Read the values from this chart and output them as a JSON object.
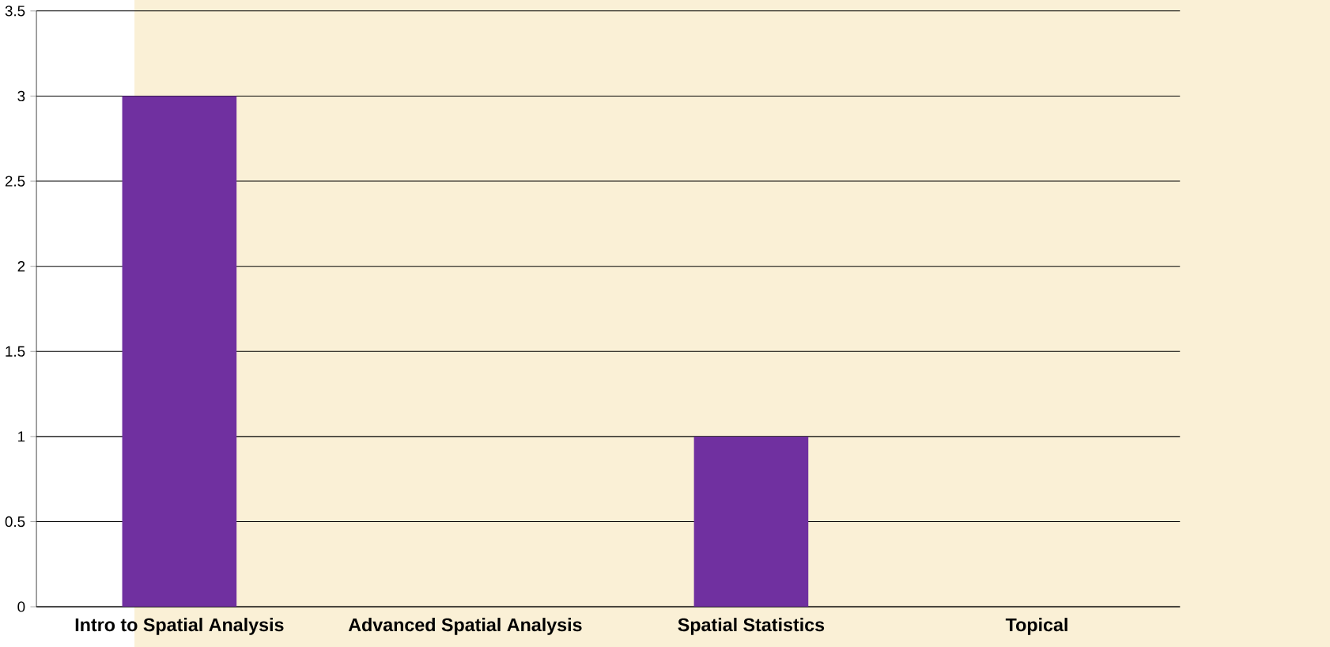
{
  "chart_data": {
    "type": "bar",
    "categories": [
      "Intro to Spatial Analysis",
      "Advanced Spatial Analysis",
      "Spatial Statistics",
      "Topical"
    ],
    "values": [
      3,
      0,
      1,
      0
    ],
    "color": "#7030a0",
    "ylim": [
      0,
      3.5
    ],
    "yticks": [
      0,
      0.5,
      1,
      1.5,
      2,
      2.5,
      3,
      3.5
    ],
    "grid": "y"
  }
}
